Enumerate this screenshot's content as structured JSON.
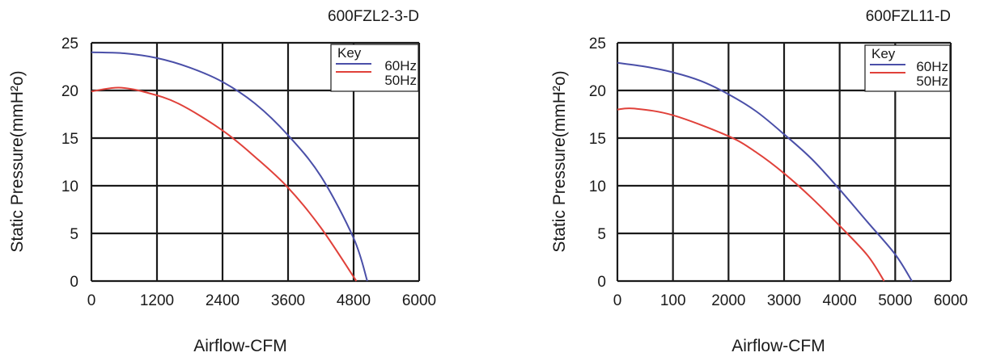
{
  "chart_data": [
    {
      "type": "line",
      "title": "600FZL2-3-D",
      "xlabel": "Airflow-CFM",
      "ylabel": "Static Pressure(mmH²o)",
      "xticks": [
        "0",
        "1200",
        "2400",
        "3600",
        "4800",
        "6000"
      ],
      "yticks": [
        "0",
        "5",
        "10",
        "15",
        "20",
        "25"
      ],
      "xlim": [
        0,
        6000
      ],
      "ylim": [
        0,
        25
      ],
      "grid": true,
      "legend": {
        "title": "Key",
        "placement": "top-right"
      },
      "series": [
        {
          "name": "60Hz",
          "color": "#4a4fa8",
          "points": [
            [
              0,
              24.0
            ],
            [
              600,
              23.9
            ],
            [
              1200,
              23.4
            ],
            [
              1800,
              22.4
            ],
            [
              2400,
              20.9
            ],
            [
              3000,
              18.6
            ],
            [
              3600,
              15.3
            ],
            [
              4200,
              11.0
            ],
            [
              4800,
              4.5
            ],
            [
              5050,
              0
            ]
          ]
        },
        {
          "name": "50Hz",
          "color": "#e0413a",
          "points": [
            [
              0,
              19.9
            ],
            [
              500,
              20.3
            ],
            [
              1000,
              19.8
            ],
            [
              1600,
              18.6
            ],
            [
              2400,
              15.8
            ],
            [
              3000,
              13.0
            ],
            [
              3600,
              9.8
            ],
            [
              4200,
              5.6
            ],
            [
              4850,
              0
            ]
          ]
        }
      ]
    },
    {
      "type": "line",
      "title": "600FZL11-D",
      "xlabel": "Airflow-CFM",
      "ylabel": "Static Pressure(mmH²o)",
      "xticks": [
        "0",
        "100",
        "2000",
        "3000",
        "4000",
        "5000",
        "6000"
      ],
      "yticks": [
        "0",
        "5",
        "10",
        "15",
        "20",
        "25"
      ],
      "xlim": [
        0,
        6000
      ],
      "ylim": [
        0,
        25
      ],
      "grid": true,
      "legend": {
        "title": "Key",
        "placement": "top-right"
      },
      "series": [
        {
          "name": "60Hz",
          "color": "#4a4fa8",
          "points": [
            [
              0,
              22.9
            ],
            [
              500,
              22.5
            ],
            [
              1000,
              21.9
            ],
            [
              1500,
              21.0
            ],
            [
              2000,
              19.6
            ],
            [
              2500,
              17.8
            ],
            [
              3000,
              15.4
            ],
            [
              3500,
              12.8
            ],
            [
              4000,
              9.6
            ],
            [
              4500,
              6.2
            ],
            [
              5000,
              2.8
            ],
            [
              5300,
              0
            ]
          ]
        },
        {
          "name": "50Hz",
          "color": "#e0413a",
          "points": [
            [
              0,
              18.0
            ],
            [
              300,
              18.1
            ],
            [
              1000,
              17.4
            ],
            [
              2000,
              15.2
            ],
            [
              2500,
              13.5
            ],
            [
              3000,
              11.3
            ],
            [
              3500,
              8.7
            ],
            [
              4000,
              5.8
            ],
            [
              4500,
              2.7
            ],
            [
              4800,
              0
            ]
          ]
        }
      ]
    }
  ]
}
